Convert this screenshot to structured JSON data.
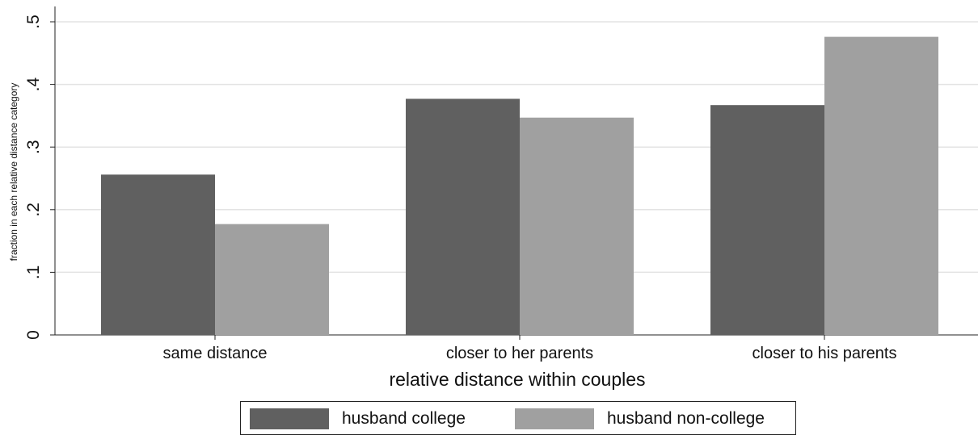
{
  "chart_data": {
    "type": "bar",
    "categories": [
      "same distance",
      "closer to her parents",
      "closer to his parents"
    ],
    "series": [
      {
        "name": "husband college",
        "values": [
          0.256,
          0.377,
          0.367
        ],
        "color": "#606060"
      },
      {
        "name": "husband non-college",
        "values": [
          0.177,
          0.347,
          0.476
        ],
        "color": "#a0a0a0"
      }
    ],
    "xlabel": "relative distance within couples",
    "ylabel": "fraction in each relative distance category",
    "ylim": [
      0,
      0.5
    ],
    "yticks": [
      0,
      0.1,
      0.2,
      0.3,
      0.4,
      0.5
    ],
    "ytick_labels": [
      "0",
      ".1",
      ".2",
      ".3",
      ".4",
      ".5"
    ],
    "grid": true,
    "legend_position": "bottom"
  }
}
